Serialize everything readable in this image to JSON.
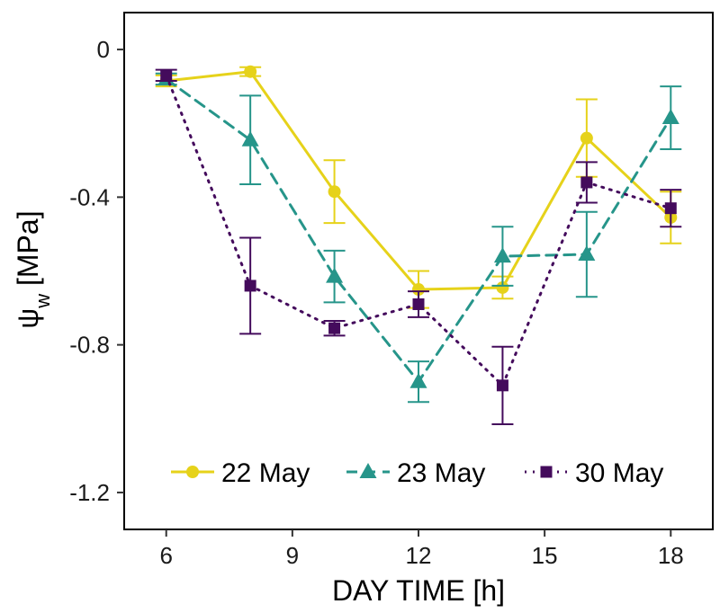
{
  "chart_data": {
    "type": "line",
    "xlabel": "DAY TIME [h]",
    "ylabel": {
      "main": "ψ",
      "sub": "w",
      "unit": " [MPa]"
    },
    "xlim": [
      5,
      19
    ],
    "ylim": [
      -1.3,
      0.1
    ],
    "xticks": [
      6,
      9,
      12,
      15,
      18
    ],
    "yticks": [
      0,
      -0.4,
      -0.8,
      -1.2
    ],
    "ytick_labels": [
      "0",
      "-0.4",
      "-0.8",
      "-1.2"
    ],
    "legend_position": "bottom-center",
    "x": [
      6,
      8,
      10,
      12,
      14,
      16,
      18
    ],
    "series": [
      {
        "name": "22 May",
        "color": "#e6d21a",
        "marker": "circle",
        "dash": "solid",
        "values": [
          -0.085,
          -0.06,
          -0.385,
          -0.65,
          -0.645,
          -0.24,
          -0.455
        ],
        "err": [
          0.015,
          0.012,
          0.085,
          0.05,
          0.03,
          0.105,
          0.07
        ]
      },
      {
        "name": "23 May",
        "color": "#26958a",
        "marker": "triangle",
        "dash": "dashed",
        "values": [
          -0.08,
          -0.245,
          -0.615,
          -0.9,
          -0.56,
          -0.555,
          -0.185
        ],
        "err": [
          0.015,
          0.12,
          0.07,
          0.055,
          0.08,
          0.115,
          0.085
        ]
      },
      {
        "name": "30 May",
        "color": "#440b5c",
        "marker": "square",
        "dash": "dotted",
        "values": [
          -0.07,
          -0.64,
          -0.755,
          -0.69,
          -0.91,
          -0.36,
          -0.43
        ],
        "err": [
          0.015,
          0.13,
          0.02,
          0.035,
          0.105,
          0.055,
          0.05
        ]
      }
    ]
  }
}
